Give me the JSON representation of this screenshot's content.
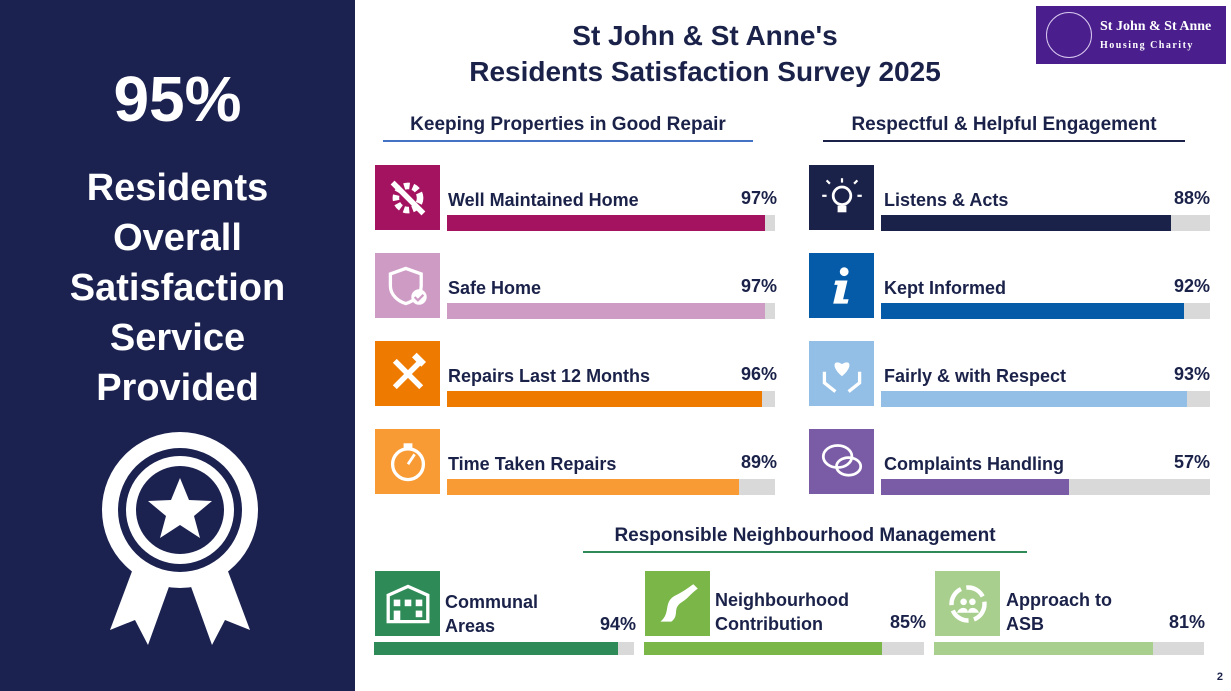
{
  "left": {
    "headline": "95%",
    "text": "Residents\nOverall\nSatisfaction\nService\nProvided"
  },
  "title": {
    "line1": "St John & St Anne's",
    "line2": "Residents Satisfaction Survey 2025"
  },
  "logo": {
    "line1": "St John & St Anne",
    "line2": "Housing Charity"
  },
  "page_number": "2",
  "colors": {
    "navy": "#1b2250",
    "track": "#d9d9d9"
  },
  "chart_data": [
    {
      "type": "bar",
      "title": "Keeping Properties in Good Repair",
      "underline": "#4472c4",
      "ylim": [
        0,
        100
      ],
      "items": [
        {
          "label": "Well Maintained Home",
          "value": 97,
          "display": "97%",
          "color": "#a4135f",
          "icon": "gear-wrench-icon"
        },
        {
          "label": "Safe Home",
          "value": 97,
          "display": "97%",
          "color": "#ce9bc5",
          "icon": "shield-check-icon"
        },
        {
          "label": "Repairs Last 12 Months",
          "value": 96,
          "display": "96%",
          "color": "#ee7a00",
          "icon": "hammer-wrench-icon"
        },
        {
          "label": "Time Taken Repairs",
          "value": 89,
          "display": "89%",
          "color": "#f89b34",
          "icon": "stopwatch-icon"
        }
      ]
    },
    {
      "type": "bar",
      "title": "Respectful & Helpful Engagement",
      "underline": "#1b2249",
      "ylim": [
        0,
        100
      ],
      "items": [
        {
          "label": "Listens & Acts",
          "value": 88,
          "display": "88%",
          "color": "#1b2249",
          "icon": "lightbulb-icon"
        },
        {
          "label": "Kept Informed",
          "value": 92,
          "display": "92%",
          "color": "#065ba8",
          "icon": "info-icon"
        },
        {
          "label": "Fairly & with Respect",
          "value": 93,
          "display": "93%",
          "color": "#93bfe6",
          "icon": "heart-hands-icon"
        },
        {
          "label": "Complaints Handling",
          "value": 57,
          "display": "57%",
          "color": "#7a5ba6",
          "icon": "speech-bubbles-icon"
        }
      ]
    },
    {
      "type": "bar",
      "title": "Responsible Neighbourhood Management",
      "underline": "#2e8b57",
      "ylim": [
        0,
        100
      ],
      "items": [
        {
          "label": "Communal\nAreas",
          "value": 94,
          "display": "94%",
          "color": "#2e8b57",
          "icon": "building-icon"
        },
        {
          "label": "Neighbourhood\nContribution",
          "value": 85,
          "display": "85%",
          "color": "#7ab648",
          "icon": "road-icon"
        },
        {
          "label": "Approach to\nASB",
          "value": 81,
          "display": "81%",
          "color": "#a8cf8e",
          "icon": "community-icon"
        }
      ]
    }
  ]
}
